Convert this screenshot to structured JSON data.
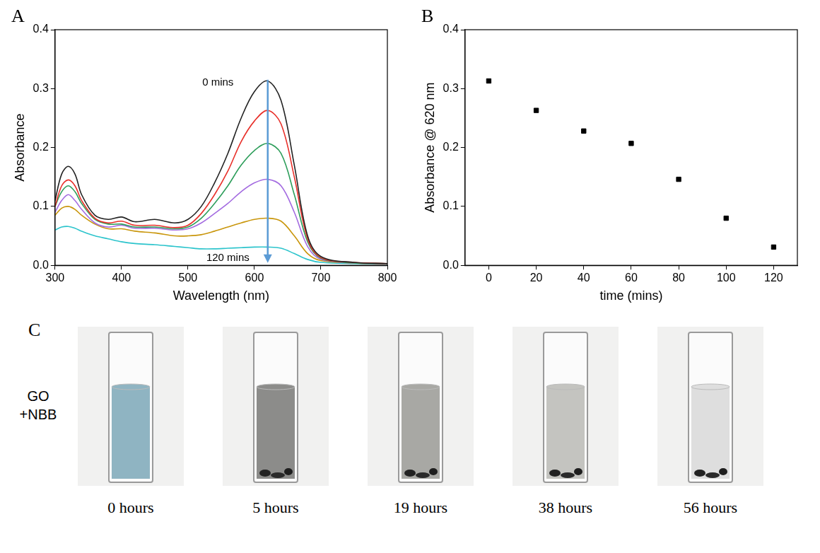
{
  "chart_data": [
    {
      "type": "line",
      "panel_label": "A",
      "x_label": "Wavelength (nm)",
      "y_label": "Absorbance",
      "x": [
        300,
        310,
        320,
        330,
        340,
        360,
        380,
        400,
        420,
        450,
        480,
        500,
        520,
        540,
        560,
        580,
        600,
        620,
        640,
        660,
        680,
        700,
        750,
        800
      ],
      "series": [
        {
          "color": "#222222",
          "values": [
            0.11,
            0.155,
            0.168,
            0.155,
            0.12,
            0.085,
            0.078,
            0.082,
            0.074,
            0.078,
            0.072,
            0.078,
            0.1,
            0.14,
            0.19,
            0.25,
            0.295,
            0.313,
            0.28,
            0.17,
            0.05,
            0.015,
            0.005,
            0.003
          ]
        },
        {
          "color": "#e8302a",
          "values": [
            0.1,
            0.135,
            0.145,
            0.135,
            0.11,
            0.08,
            0.072,
            0.075,
            0.068,
            0.068,
            0.064,
            0.068,
            0.088,
            0.12,
            0.16,
            0.21,
            0.245,
            0.263,
            0.24,
            0.15,
            0.045,
            0.013,
            0.005,
            0.003
          ]
        },
        {
          "color": "#2e9e5b",
          "values": [
            0.1,
            0.125,
            0.135,
            0.125,
            0.105,
            0.078,
            0.07,
            0.07,
            0.065,
            0.065,
            0.062,
            0.065,
            0.08,
            0.105,
            0.135,
            0.17,
            0.195,
            0.207,
            0.19,
            0.12,
            0.04,
            0.012,
            0.004,
            0.003
          ]
        },
        {
          "color": "#a36be0",
          "values": [
            0.09,
            0.11,
            0.12,
            0.11,
            0.095,
            0.072,
            0.065,
            0.068,
            0.063,
            0.063,
            0.06,
            0.062,
            0.072,
            0.088,
            0.105,
            0.125,
            0.14,
            0.146,
            0.135,
            0.09,
            0.032,
            0.01,
            0.004,
            0.003
          ]
        },
        {
          "color": "#c9960c",
          "values": [
            0.085,
            0.097,
            0.1,
            0.095,
            0.085,
            0.07,
            0.062,
            0.062,
            0.058,
            0.055,
            0.05,
            0.05,
            0.052,
            0.058,
            0.065,
            0.072,
            0.078,
            0.08,
            0.075,
            0.05,
            0.02,
            0.008,
            0.004,
            0.003
          ]
        },
        {
          "color": "#2cc4cc",
          "values": [
            0.06,
            0.065,
            0.066,
            0.063,
            0.058,
            0.05,
            0.045,
            0.04,
            0.037,
            0.035,
            0.032,
            0.03,
            0.028,
            0.028,
            0.029,
            0.03,
            0.031,
            0.031,
            0.029,
            0.02,
            0.01,
            0.005,
            0.003,
            0.002
          ]
        }
      ],
      "xlim": [
        300,
        800
      ],
      "xticks": [
        300,
        400,
        500,
        600,
        700,
        800
      ],
      "ylim": [
        0,
        0.4
      ],
      "yticks": [
        {
          "value": 0,
          "label": "0.0"
        },
        0.1,
        0.2,
        0.3,
        0.4
      ],
      "grid": false,
      "annotations": [
        {
          "text": "0 mins",
          "x": 545,
          "y": 0.31
        },
        {
          "text": "120 mins",
          "x": 560,
          "y": 0.012
        }
      ],
      "arrow": {
        "x": 620,
        "y_start": 0.315,
        "y_end": 0.004,
        "color": "#5b9bd5"
      }
    },
    {
      "type": "scatter",
      "panel_label": "B",
      "x_label": "time (mins)",
      "y_label": "Absorbance @ 620 nm",
      "x": [
        0,
        20,
        40,
        60,
        80,
        100,
        120
      ],
      "values": [
        0.313,
        0.263,
        0.228,
        0.207,
        0.146,
        0.08,
        0.031
      ],
      "color": "#000000",
      "marker": "square",
      "xlim": [
        -10,
        130
      ],
      "xticks": [
        0,
        20,
        40,
        60,
        80,
        100,
        120
      ],
      "ylim": [
        0,
        0.4
      ],
      "yticks": [
        {
          "value": 0,
          "label": "0.0"
        },
        0.1,
        0.2,
        0.3,
        0.4
      ],
      "grid": false
    }
  ],
  "photo_panel": {
    "panel_label": "C",
    "side_label": "GO +NBB",
    "photos": [
      {
        "label": "0 hours",
        "color": "#8fb4c2"
      },
      {
        "label": "5 hours",
        "color": "#8c8c8a"
      },
      {
        "label": "19 hours",
        "color": "#a8a8a4"
      },
      {
        "label": "38 hours",
        "color": "#c4c4c0"
      },
      {
        "label": "56 hours",
        "color": "#dedede"
      }
    ]
  }
}
